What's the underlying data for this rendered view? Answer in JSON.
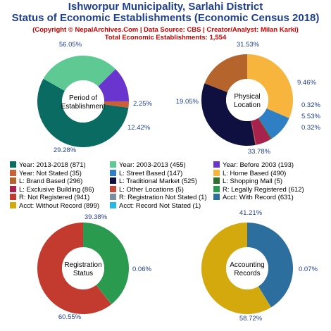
{
  "header": {
    "title_line1": "Ishworpur Municipality, Sarlahi District",
    "title_line2": "Status of Economic Establishments (Economic Census 2018)",
    "subtitle_line1": "(Copyright © NepalArchives.Com | Data Source: CBS | Creator/Analyst: Milan Karki)",
    "subtitle_line2": "Total Economic Establishments: 1,554"
  },
  "chart_data": [
    {
      "type": "pie",
      "center_label": [
        "Period of",
        "Establishment"
      ],
      "slices": [
        {
          "label": "Year: 2013-2018 (871)",
          "value": 871,
          "percent": "56.05%",
          "color": "#0a6b63"
        },
        {
          "label": "Year: 2003-2013 (455)",
          "value": 455,
          "percent": "29.28%",
          "color": "#5ec993"
        },
        {
          "label": "Year: Before 2003 (193)",
          "value": 193,
          "percent": "12.42%",
          "color": "#6a35cf"
        },
        {
          "label": "Year: Not Stated (35)",
          "value": 35,
          "percent": "2.25%",
          "color": "#c9603a"
        }
      ]
    },
    {
      "type": "pie",
      "center_label": [
        "Physical",
        "Location"
      ],
      "slices": [
        {
          "label": "L: Home Based (490)",
          "value": 490,
          "percent": "31.53%",
          "color": "#f7b53e"
        },
        {
          "label": "L: Street Based (147)",
          "value": 147,
          "percent": "9.46%",
          "color": "#2e7fc4"
        },
        {
          "label": "L: Shopping Mall (5)",
          "value": 5,
          "percent": "0.32%",
          "color": "#2f6e2b"
        },
        {
          "label": "L: Exclusive Building (86)",
          "value": 86,
          "percent": "5.53%",
          "color": "#a8224e"
        },
        {
          "label": "L: Other Locations (5)",
          "value": 5,
          "percent": "0.32%",
          "color": "#c44a3c"
        },
        {
          "label": "L: Traditional Market (525)",
          "value": 525,
          "percent": "33.78%",
          "color": "#101040"
        },
        {
          "label": "L: Brand Based (296)",
          "value": 296,
          "percent": "19.05%",
          "color": "#b5652b"
        }
      ]
    },
    {
      "type": "pie",
      "center_label": [
        "Registration",
        "Status"
      ],
      "slices": [
        {
          "label": "R: Legally Registered (612)",
          "value": 612,
          "percent": "39.38%",
          "color": "#2a9a4e"
        },
        {
          "label": "R: Registration Not Stated (1)",
          "value": 1,
          "percent": "0.06%",
          "color": "#7c8fa0"
        },
        {
          "label": "R: Not Registered (941)",
          "value": 941,
          "percent": "60.55%",
          "color": "#c33a2e"
        }
      ]
    },
    {
      "type": "pie",
      "center_label": [
        "Accounting",
        "Records"
      ],
      "slices": [
        {
          "label": "Acct: With Record (631)",
          "value": 631,
          "percent": "41.21%",
          "color": "#2c6e9e"
        },
        {
          "label": "Acct: Record Not Stated (1)",
          "value": 1,
          "percent": "0.07%",
          "color": "#29b7e8"
        },
        {
          "label": "Acct: Without Record (899)",
          "value": 899,
          "percent": "58.72%",
          "color": "#d4a90e"
        }
      ]
    }
  ],
  "legend": [
    {
      "label": "Year: 2013-2018 (871)",
      "color": "#0a6b63"
    },
    {
      "label": "Year: 2003-2013 (455)",
      "color": "#5ec993"
    },
    {
      "label": "Year: Before 2003 (193)",
      "color": "#6a35cf"
    },
    {
      "label": "Year: Not Stated (35)",
      "color": "#c9603a"
    },
    {
      "label": "L: Street Based (147)",
      "color": "#2e7fc4"
    },
    {
      "label": "L: Home Based (490)",
      "color": "#f7b53e"
    },
    {
      "label": "L: Brand Based (296)",
      "color": "#b5652b"
    },
    {
      "label": "L: Traditional Market (525)",
      "color": "#101040"
    },
    {
      "label": "L: Shopping Mall (5)",
      "color": "#2f6e2b"
    },
    {
      "label": "L: Exclusive Building (86)",
      "color": "#a8224e"
    },
    {
      "label": "L: Other Locations (5)",
      "color": "#c44a3c"
    },
    {
      "label": "R: Legally Registered (612)",
      "color": "#2a9a4e"
    },
    {
      "label": "R: Not Registered (941)",
      "color": "#c33a2e"
    },
    {
      "label": "R: Registration Not Stated (1)",
      "color": "#7c8fa0"
    },
    {
      "label": "Acct: With Record (631)",
      "color": "#2c6e9e"
    },
    {
      "label": "Acct: Without Record (899)",
      "color": "#d4a90e"
    },
    {
      "label": "Acct: Record Not Stated (1)",
      "color": "#29b7e8"
    }
  ]
}
